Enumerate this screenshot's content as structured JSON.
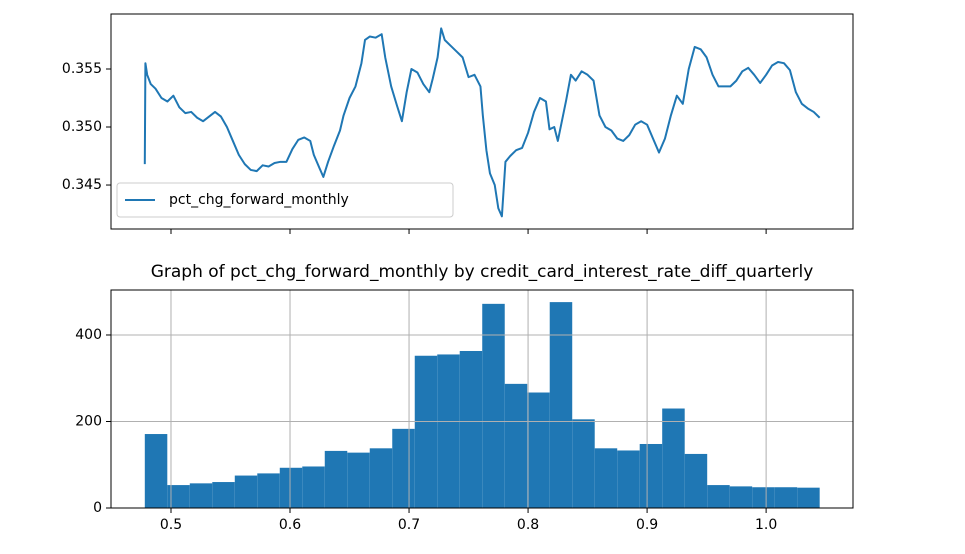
{
  "chart_data": [
    {
      "type": "line",
      "x": [
        0.478,
        0.4785,
        0.48,
        0.483,
        0.487,
        0.492,
        0.497,
        0.502,
        0.507,
        0.512,
        0.517,
        0.522,
        0.527,
        0.532,
        0.537,
        0.542,
        0.547,
        0.552,
        0.557,
        0.562,
        0.567,
        0.572,
        0.577,
        0.582,
        0.587,
        0.592,
        0.597,
        0.602,
        0.607,
        0.612,
        0.617,
        0.62,
        0.625,
        0.628,
        0.632,
        0.637,
        0.642,
        0.645,
        0.65,
        0.655,
        0.66,
        0.663,
        0.667,
        0.672,
        0.677,
        0.68,
        0.685,
        0.69,
        0.694,
        0.698,
        0.702,
        0.707,
        0.712,
        0.717,
        0.72,
        0.724,
        0.727,
        0.73,
        0.735,
        0.74,
        0.745,
        0.75,
        0.755,
        0.76,
        0.762,
        0.765,
        0.768,
        0.772,
        0.775,
        0.778,
        0.781,
        0.785,
        0.79,
        0.795,
        0.8,
        0.805,
        0.81,
        0.815,
        0.818,
        0.822,
        0.825,
        0.828,
        0.832,
        0.836,
        0.84,
        0.845,
        0.85,
        0.855,
        0.86,
        0.865,
        0.87,
        0.875,
        0.88,
        0.885,
        0.89,
        0.895,
        0.9,
        0.905,
        0.91,
        0.915,
        0.92,
        0.925,
        0.93,
        0.935,
        0.94,
        0.945,
        0.95,
        0.955,
        0.96,
        0.965,
        0.97,
        0.975,
        0.98,
        0.985,
        0.99,
        0.995,
        1.0,
        1.005,
        1.01,
        1.015,
        1.02,
        1.025,
        1.03,
        1.035,
        1.04,
        1.045
      ],
      "series": [
        {
          "name": "pct_chg_forward_monthly",
          "color": "#1f77b4",
          "values": [
            0.3468,
            0.3555,
            0.3545,
            0.3537,
            0.3533,
            0.3525,
            0.3522,
            0.3527,
            0.3517,
            0.3512,
            0.3513,
            0.3508,
            0.3505,
            0.3509,
            0.3513,
            0.3509,
            0.35,
            0.3488,
            0.3476,
            0.3468,
            0.3463,
            0.3462,
            0.3467,
            0.3466,
            0.3469,
            0.347,
            0.347,
            0.3481,
            0.3489,
            0.3491,
            0.3488,
            0.3476,
            0.3464,
            0.3457,
            0.347,
            0.3484,
            0.3497,
            0.351,
            0.3525,
            0.3535,
            0.3555,
            0.3575,
            0.3578,
            0.3577,
            0.358,
            0.356,
            0.3535,
            0.3518,
            0.3505,
            0.353,
            0.355,
            0.3547,
            0.3537,
            0.353,
            0.3542,
            0.356,
            0.3585,
            0.3575,
            0.357,
            0.3565,
            0.356,
            0.3543,
            0.3545,
            0.3535,
            0.351,
            0.348,
            0.346,
            0.345,
            0.343,
            0.3423,
            0.347,
            0.3475,
            0.348,
            0.3482,
            0.3495,
            0.3513,
            0.3525,
            0.3522,
            0.3498,
            0.35,
            0.3488,
            0.3503,
            0.3523,
            0.3545,
            0.354,
            0.3548,
            0.3545,
            0.354,
            0.351,
            0.35,
            0.3497,
            0.349,
            0.3488,
            0.3493,
            0.3502,
            0.3505,
            0.3502,
            0.349,
            0.3478,
            0.349,
            0.351,
            0.3527,
            0.352,
            0.355,
            0.3569,
            0.3567,
            0.356,
            0.3545,
            0.3535,
            0.3535,
            0.3535,
            0.354,
            0.3548,
            0.3551,
            0.3545,
            0.3538,
            0.3545,
            0.3553,
            0.3556,
            0.3555,
            0.3549,
            0.353,
            0.352,
            0.3516,
            0.3513,
            0.3508
          ]
        }
      ],
      "xlim": [
        0.4496,
        1.073
      ],
      "xticks": [
        0.5,
        0.6,
        0.7,
        0.8,
        0.9,
        1
      ],
      "ylim": [
        0.34121,
        0.35974
      ],
      "yticks": [
        0.345,
        {
          "value": 0.35,
          "label": "0.350"
        },
        0.355
      ],
      "legend": "lower left"
    },
    {
      "type": "histogram",
      "title": "Graph of pct_chg_forward_monthly by credit_card_interest_rate_diff_quarterly",
      "bins": [
        0.478,
        0.4969,
        0.5158,
        0.5347,
        0.5536,
        0.5725,
        0.5914,
        0.6103,
        0.6292,
        0.6481,
        0.667,
        0.6859,
        0.7048,
        0.7237,
        0.7426,
        0.7615,
        0.7804,
        0.7993,
        0.8182,
        0.8371,
        0.856,
        0.8749,
        0.8938,
        0.9127,
        0.9316,
        0.9505,
        0.9694,
        0.9883,
        1.0072,
        1.0261,
        1.045
      ],
      "values": [
        171,
        53,
        57,
        60,
        75,
        80,
        93,
        96,
        132,
        128,
        138,
        183,
        352,
        355,
        363,
        472,
        287,
        267,
        476,
        205,
        138,
        133,
        148,
        230,
        125,
        53,
        50,
        48,
        48,
        47
      ],
      "color": "#1f77b4",
      "xlim": [
        0.4496,
        1.073
      ],
      "xticks": [
        0.5,
        0.6,
        0.7,
        0.8,
        0.9,
        {
          "value": 1,
          "label": "1.0"
        }
      ],
      "ylim": [
        0,
        504
      ],
      "yticks": [
        0,
        200,
        400
      ],
      "grid": true
    }
  ]
}
